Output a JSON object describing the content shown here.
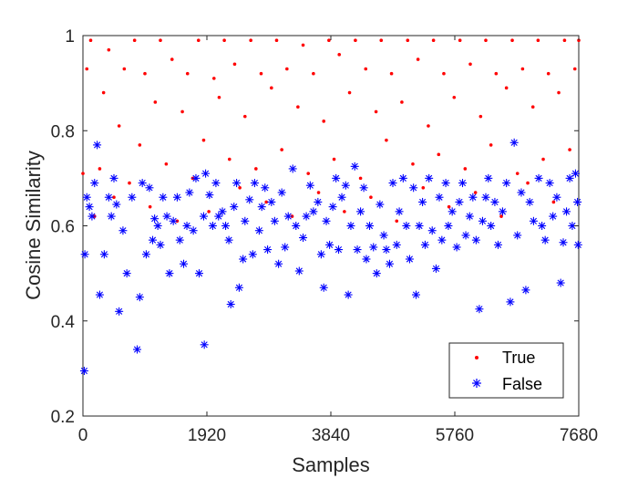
{
  "chart_data": {
    "type": "scatter",
    "title": "",
    "xlabel": "Samples",
    "ylabel": "Cosine Similarity",
    "xlim": [
      0,
      7680
    ],
    "ylim": [
      0.2,
      1.0
    ],
    "xticks": [
      0,
      1920,
      3840,
      5760,
      7680
    ],
    "xtick_labels": [
      "0",
      "1920",
      "3840",
      "5760",
      "7680"
    ],
    "yticks": [
      0.2,
      0.4,
      0.6,
      0.8,
      1.0
    ],
    "ytick_labels": [
      "0.2",
      "0.4",
      "0.6",
      "0.8",
      "1"
    ],
    "grid": false,
    "legend_position": "bottom-right",
    "series": [
      {
        "name": "True",
        "marker": "dot",
        "color": "#ff0000",
        "points": [
          [
            0,
            0.71
          ],
          [
            60,
            0.93
          ],
          [
            120,
            0.99
          ],
          [
            180,
            0.62
          ],
          [
            260,
            0.72
          ],
          [
            320,
            0.88
          ],
          [
            400,
            0.97
          ],
          [
            480,
            0.66
          ],
          [
            560,
            0.81
          ],
          [
            640,
            0.93
          ],
          [
            720,
            0.69
          ],
          [
            800,
            0.99
          ],
          [
            880,
            0.77
          ],
          [
            960,
            0.92
          ],
          [
            1040,
            0.64
          ],
          [
            1120,
            0.86
          ],
          [
            1200,
            0.99
          ],
          [
            1290,
            0.73
          ],
          [
            1380,
            0.95
          ],
          [
            1460,
            0.61
          ],
          [
            1540,
            0.84
          ],
          [
            1620,
            0.92
          ],
          [
            1700,
            0.7
          ],
          [
            1790,
            0.99
          ],
          [
            1870,
            0.78
          ],
          [
            1950,
            0.63
          ],
          [
            2030,
            0.91
          ],
          [
            2110,
            0.87
          ],
          [
            2190,
            0.99
          ],
          [
            2270,
            0.74
          ],
          [
            2350,
            0.94
          ],
          [
            2430,
            0.68
          ],
          [
            2510,
            0.83
          ],
          [
            2600,
            0.99
          ],
          [
            2680,
            0.72
          ],
          [
            2760,
            0.92
          ],
          [
            2840,
            0.65
          ],
          [
            2920,
            0.89
          ],
          [
            3000,
            0.99
          ],
          [
            3080,
            0.76
          ],
          [
            3160,
            0.93
          ],
          [
            3240,
            0.62
          ],
          [
            3330,
            0.85
          ],
          [
            3410,
            0.98
          ],
          [
            3490,
            0.71
          ],
          [
            3570,
            0.92
          ],
          [
            3650,
            0.67
          ],
          [
            3730,
            0.82
          ],
          [
            3810,
            0.99
          ],
          [
            3890,
            0.74
          ],
          [
            3970,
            0.96
          ],
          [
            4050,
            0.63
          ],
          [
            4130,
            0.88
          ],
          [
            4220,
            0.99
          ],
          [
            4300,
            0.7
          ],
          [
            4380,
            0.93
          ],
          [
            4460,
            0.66
          ],
          [
            4540,
            0.84
          ],
          [
            4620,
            0.99
          ],
          [
            4700,
            0.78
          ],
          [
            4780,
            0.92
          ],
          [
            4860,
            0.61
          ],
          [
            4940,
            0.86
          ],
          [
            5030,
            0.99
          ],
          [
            5110,
            0.73
          ],
          [
            5190,
            0.95
          ],
          [
            5270,
            0.68
          ],
          [
            5350,
            0.81
          ],
          [
            5430,
            0.99
          ],
          [
            5510,
            0.75
          ],
          [
            5590,
            0.92
          ],
          [
            5670,
            0.64
          ],
          [
            5750,
            0.87
          ],
          [
            5840,
            0.99
          ],
          [
            5920,
            0.72
          ],
          [
            6000,
            0.94
          ],
          [
            6080,
            0.67
          ],
          [
            6160,
            0.83
          ],
          [
            6240,
            0.99
          ],
          [
            6320,
            0.77
          ],
          [
            6400,
            0.92
          ],
          [
            6480,
            0.62
          ],
          [
            6560,
            0.89
          ],
          [
            6650,
            0.99
          ],
          [
            6730,
            0.71
          ],
          [
            6810,
            0.93
          ],
          [
            6890,
            0.69
          ],
          [
            6970,
            0.85
          ],
          [
            7050,
            0.99
          ],
          [
            7130,
            0.74
          ],
          [
            7210,
            0.92
          ],
          [
            7290,
            0.65
          ],
          [
            7370,
            0.88
          ],
          [
            7460,
            0.99
          ],
          [
            7540,
            0.76
          ],
          [
            7620,
            0.93
          ],
          [
            7680,
            0.99
          ]
        ]
      },
      {
        "name": "False",
        "marker": "asterisk",
        "color": "#0000ff",
        "points": [
          [
            20,
            0.295
          ],
          [
            30,
            0.54
          ],
          [
            60,
            0.66
          ],
          [
            100,
            0.64
          ],
          [
            140,
            0.62
          ],
          [
            180,
            0.69
          ],
          [
            220,
            0.77
          ],
          [
            260,
            0.455
          ],
          [
            330,
            0.54
          ],
          [
            400,
            0.66
          ],
          [
            440,
            0.62
          ],
          [
            480,
            0.7
          ],
          [
            520,
            0.645
          ],
          [
            560,
            0.42
          ],
          [
            620,
            0.59
          ],
          [
            680,
            0.5
          ],
          [
            760,
            0.66
          ],
          [
            840,
            0.34
          ],
          [
            880,
            0.45
          ],
          [
            920,
            0.69
          ],
          [
            980,
            0.54
          ],
          [
            1030,
            0.68
          ],
          [
            1080,
            0.57
          ],
          [
            1110,
            0.615
          ],
          [
            1160,
            0.6
          ],
          [
            1200,
            0.56
          ],
          [
            1240,
            0.66
          ],
          [
            1300,
            0.62
          ],
          [
            1340,
            0.5
          ],
          [
            1400,
            0.61
          ],
          [
            1460,
            0.66
          ],
          [
            1500,
            0.57
          ],
          [
            1560,
            0.52
          ],
          [
            1610,
            0.6
          ],
          [
            1650,
            0.67
          ],
          [
            1710,
            0.59
          ],
          [
            1750,
            0.7
          ],
          [
            1800,
            0.5
          ],
          [
            1870,
            0.62
          ],
          [
            1880,
            0.35
          ],
          [
            1900,
            0.71
          ],
          [
            1960,
            0.665
          ],
          [
            2010,
            0.6
          ],
          [
            2060,
            0.69
          ],
          [
            2100,
            0.62
          ],
          [
            2160,
            0.63
          ],
          [
            2210,
            0.6
          ],
          [
            2260,
            0.57
          ],
          [
            2290,
            0.435
          ],
          [
            2340,
            0.64
          ],
          [
            2380,
            0.69
          ],
          [
            2420,
            0.47
          ],
          [
            2480,
            0.53
          ],
          [
            2510,
            0.61
          ],
          [
            2580,
            0.655
          ],
          [
            2630,
            0.54
          ],
          [
            2660,
            0.69
          ],
          [
            2730,
            0.59
          ],
          [
            2770,
            0.64
          ],
          [
            2820,
            0.68
          ],
          [
            2860,
            0.55
          ],
          [
            2920,
            0.65
          ],
          [
            2970,
            0.61
          ],
          [
            3030,
            0.52
          ],
          [
            3080,
            0.67
          ],
          [
            3130,
            0.555
          ],
          [
            3180,
            0.62
          ],
          [
            3250,
            0.72
          ],
          [
            3300,
            0.6
          ],
          [
            3350,
            0.505
          ],
          [
            3410,
            0.575
          ],
          [
            3460,
            0.62
          ],
          [
            3520,
            0.685
          ],
          [
            3570,
            0.63
          ],
          [
            3640,
            0.65
          ],
          [
            3690,
            0.54
          ],
          [
            3730,
            0.47
          ],
          [
            3770,
            0.61
          ],
          [
            3820,
            0.56
          ],
          [
            3870,
            0.64
          ],
          [
            3920,
            0.7
          ],
          [
            3960,
            0.55
          ],
          [
            4010,
            0.66
          ],
          [
            4070,
            0.685
          ],
          [
            4110,
            0.455
          ],
          [
            4150,
            0.6
          ],
          [
            4210,
            0.725
          ],
          [
            4250,
            0.55
          ],
          [
            4300,
            0.63
          ],
          [
            4350,
            0.68
          ],
          [
            4390,
            0.53
          ],
          [
            4440,
            0.6
          ],
          [
            4500,
            0.555
          ],
          [
            4550,
            0.5
          ],
          [
            4600,
            0.645
          ],
          [
            4660,
            0.58
          ],
          [
            4700,
            0.55
          ],
          [
            4750,
            0.52
          ],
          [
            4800,
            0.69
          ],
          [
            4860,
            0.56
          ],
          [
            4900,
            0.63
          ],
          [
            4960,
            0.7
          ],
          [
            5010,
            0.6
          ],
          [
            5060,
            0.53
          ],
          [
            5120,
            0.68
          ],
          [
            5160,
            0.455
          ],
          [
            5210,
            0.6
          ],
          [
            5260,
            0.65
          ],
          [
            5300,
            0.56
          ],
          [
            5360,
            0.7
          ],
          [
            5410,
            0.59
          ],
          [
            5470,
            0.51
          ],
          [
            5520,
            0.66
          ],
          [
            5560,
            0.57
          ],
          [
            5620,
            0.69
          ],
          [
            5660,
            0.6
          ],
          [
            5720,
            0.63
          ],
          [
            5790,
            0.555
          ],
          [
            5830,
            0.65
          ],
          [
            5880,
            0.69
          ],
          [
            5930,
            0.58
          ],
          [
            5990,
            0.62
          ],
          [
            6040,
            0.66
          ],
          [
            6090,
            0.57
          ],
          [
            6140,
            0.425
          ],
          [
            6190,
            0.61
          ],
          [
            6240,
            0.66
          ],
          [
            6280,
            0.7
          ],
          [
            6320,
            0.6
          ],
          [
            6380,
            0.65
          ],
          [
            6430,
            0.56
          ],
          [
            6500,
            0.63
          ],
          [
            6560,
            0.69
          ],
          [
            6620,
            0.44
          ],
          [
            6680,
            0.775
          ],
          [
            6730,
            0.58
          ],
          [
            6790,
            0.67
          ],
          [
            6860,
            0.465
          ],
          [
            6920,
            0.65
          ],
          [
            6980,
            0.61
          ],
          [
            7060,
            0.7
          ],
          [
            7110,
            0.6
          ],
          [
            7160,
            0.57
          ],
          [
            7230,
            0.69
          ],
          [
            7280,
            0.62
          ],
          [
            7340,
            0.66
          ],
          [
            7400,
            0.48
          ],
          [
            7440,
            0.565
          ],
          [
            7490,
            0.63
          ],
          [
            7540,
            0.7
          ],
          [
            7580,
            0.6
          ],
          [
            7630,
            0.71
          ],
          [
            7660,
            0.65
          ],
          [
            7670,
            0.56
          ]
        ]
      }
    ]
  }
}
